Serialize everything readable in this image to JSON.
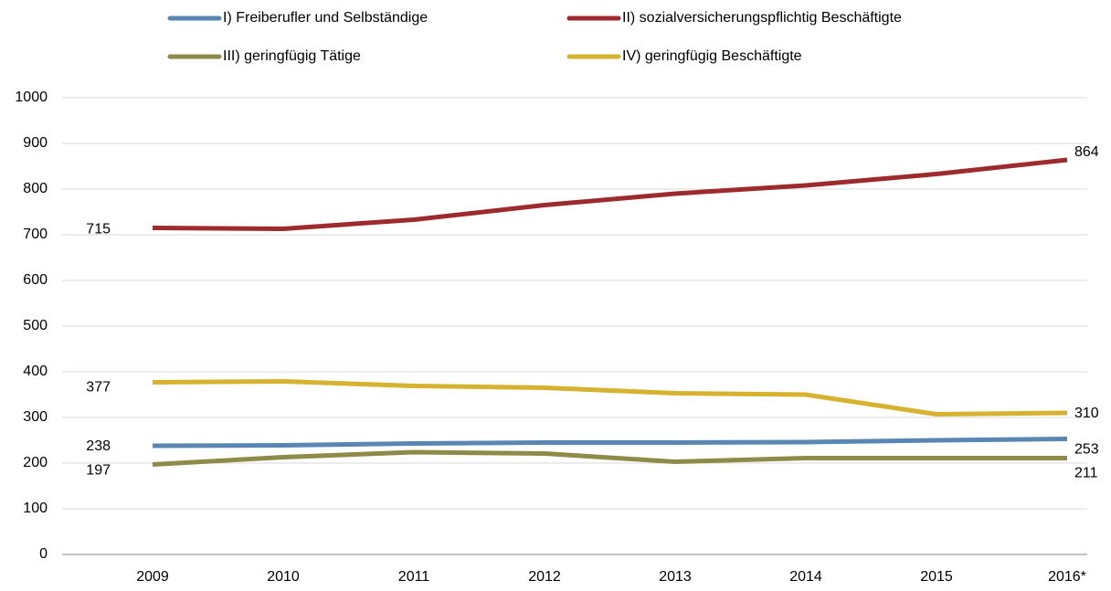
{
  "chart_data": {
    "type": "line",
    "categories": [
      "2009",
      "2010",
      "2011",
      "2012",
      "2013",
      "2014",
      "2015",
      "2016*"
    ],
    "series": [
      {
        "name": "I) Freiberufler und Selbständige",
        "color": "#5a86b4",
        "values": [
          238,
          239,
          243,
          245,
          245,
          246,
          250,
          253
        ]
      },
      {
        "name": "II) sozialversicherungspflichtig Beschäftigte",
        "color": "#9d2a2c",
        "values": [
          715,
          713,
          733,
          765,
          790,
          808,
          833,
          864
        ]
      },
      {
        "name": "III) geringfügig Tätige",
        "color": "#8e8a47",
        "values": [
          197,
          213,
          224,
          221,
          203,
          211,
          211,
          211
        ]
      },
      {
        "name": "IV) geringfügig Beschäftigte",
        "color": "#d6b22f",
        "values": [
          377,
          379,
          369,
          365,
          353,
          350,
          307,
          310
        ]
      }
    ],
    "ylim": [
      0,
      1000
    ],
    "yticks": [
      0,
      100,
      200,
      300,
      400,
      500,
      600,
      700,
      800,
      900,
      1000
    ],
    "grid": true,
    "legend": "top"
  }
}
